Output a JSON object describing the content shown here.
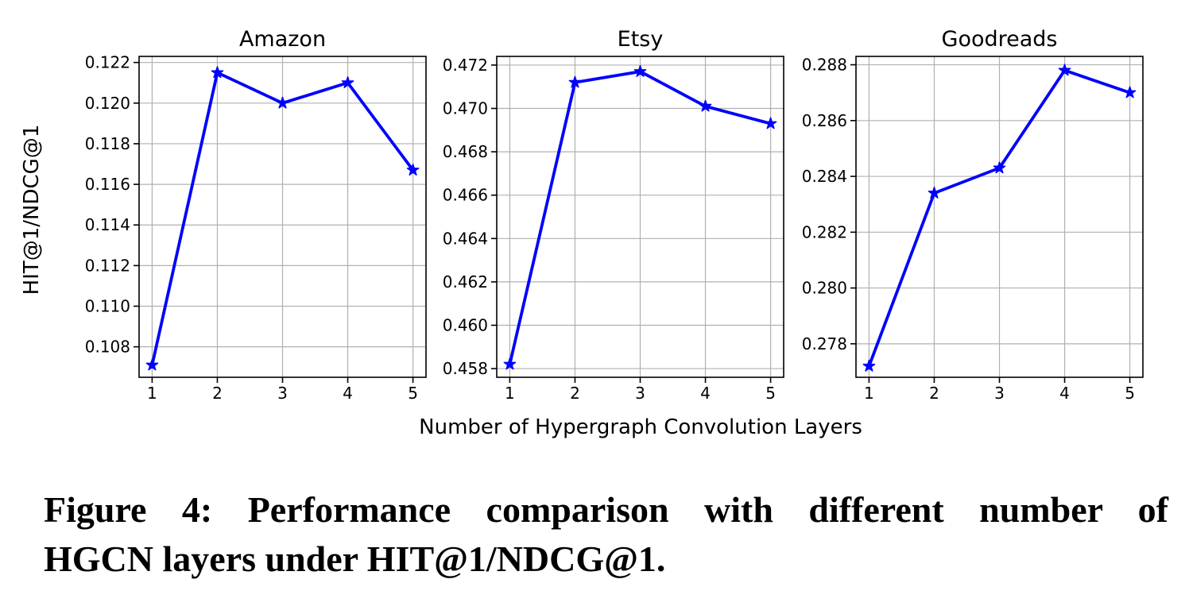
{
  "figure": {
    "shared_xlabel": "Number of Hypergraph Convolution Layers",
    "shared_ylabel": "HIT@1/NDCG@1",
    "caption_line1": "Figure 4: Performance comparison with different number of",
    "caption_line2": "HGCN layers under HIT@1/NDCG@1."
  },
  "colors": {
    "line": "#0000ff",
    "grid": "#b0b0b0",
    "axis": "#000000",
    "text": "#000000",
    "background": "#ffffff"
  },
  "chart_data": [
    {
      "type": "line",
      "title": "Amazon",
      "xlabel_shared": "Number of Hypergraph Convolution Layers",
      "ylabel": "HIT@1/NDCG@1",
      "x": [
        1,
        2,
        3,
        4,
        5
      ],
      "values": [
        0.1071,
        0.1215,
        0.12,
        0.121,
        0.1167
      ],
      "xticks": [
        1,
        2,
        3,
        4,
        5
      ],
      "yticks": [
        0.108,
        0.11,
        0.112,
        0.114,
        0.116,
        0.118,
        0.12,
        0.122
      ],
      "ytick_decimals": 3,
      "xlim": [
        0.8,
        5.2
      ],
      "ylim": [
        0.1065,
        0.1223
      ],
      "line_color": "#0000ff",
      "marker": "star",
      "grid": true,
      "legend": null
    },
    {
      "type": "line",
      "title": "Etsy",
      "xlabel_shared": "Number of Hypergraph Convolution Layers",
      "x": [
        1,
        2,
        3,
        4,
        5
      ],
      "values": [
        0.4582,
        0.4712,
        0.4717,
        0.4701,
        0.4693
      ],
      "xticks": [
        1,
        2,
        3,
        4,
        5
      ],
      "yticks": [
        0.458,
        0.46,
        0.462,
        0.464,
        0.466,
        0.468,
        0.47,
        0.472
      ],
      "ytick_decimals": 3,
      "xlim": [
        0.8,
        5.2
      ],
      "ylim": [
        0.4576,
        0.4724
      ],
      "line_color": "#0000ff",
      "marker": "star",
      "grid": true,
      "legend": null
    },
    {
      "type": "line",
      "title": "Goodreads",
      "xlabel_shared": "Number of Hypergraph Convolution Layers",
      "x": [
        1,
        2,
        3,
        4,
        5
      ],
      "values": [
        0.2772,
        0.2834,
        0.2843,
        0.2878,
        0.287
      ],
      "xticks": [
        1,
        2,
        3,
        4,
        5
      ],
      "yticks": [
        0.278,
        0.28,
        0.282,
        0.284,
        0.286,
        0.288
      ],
      "ytick_decimals": 3,
      "xlim": [
        0.8,
        5.2
      ],
      "ylim": [
        0.2768,
        0.2883
      ],
      "line_color": "#0000ff",
      "marker": "star",
      "grid": true,
      "legend": null
    }
  ]
}
